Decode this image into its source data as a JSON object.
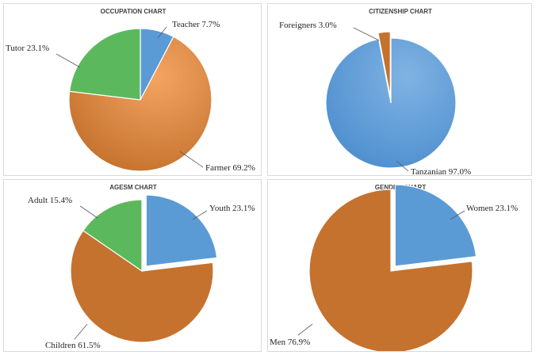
{
  "colors": {
    "blue": "#5b9bd5",
    "blue_light": "#8cbbe6",
    "orange": "#c5722e",
    "orange_light": "#f4a461",
    "green": "#5cb85c"
  },
  "chart_data": [
    {
      "id": "occupation",
      "type": "pie",
      "title": "OCCUPATION CHART",
      "slices": [
        {
          "label": "Teacher",
          "value": 7.7,
          "text": "Teacher 7.7%",
          "color": "#5b9bd5",
          "exploded": false
        },
        {
          "label": "Farmer",
          "value": 69.2,
          "text": "Farmer 69.2%",
          "color": "#c5722e",
          "highlight": "#f4a461",
          "exploded": false
        },
        {
          "label": "Tutor",
          "value": 23.1,
          "text": "Tutor 23.1%",
          "color": "#5cb85c",
          "exploded": false
        }
      ]
    },
    {
      "id": "citizenship",
      "type": "pie",
      "title": "CITIZENSHIP CHART",
      "slices": [
        {
          "label": "Tanzanian",
          "value": 97.0,
          "text": "Tanzanian 97.0%",
          "color": "#4f8fcf",
          "highlight": "#7fb3e3",
          "exploded": false
        },
        {
          "label": "Foreigners",
          "value": 3.0,
          "text": "Foreigners 3.0%",
          "color": "#c5722e",
          "exploded": true
        }
      ]
    },
    {
      "id": "agesm",
      "type": "pie",
      "title": "AGESM CHART",
      "slices": [
        {
          "label": "Youth",
          "value": 23.1,
          "text": "Youth 23.1%",
          "color": "#5b9bd5",
          "exploded": true
        },
        {
          "label": "Children",
          "value": 61.5,
          "text": "Children 61.5%",
          "color": "#c5722e",
          "exploded": false
        },
        {
          "label": "Adult",
          "value": 15.4,
          "text": "Adult 15.4%",
          "color": "#5cb85c",
          "exploded": false
        }
      ]
    },
    {
      "id": "gender",
      "type": "pie",
      "title": "GENDER CHART",
      "slices": [
        {
          "label": "Women",
          "value": 23.1,
          "text": "Women 23.1%",
          "color": "#5b9bd5",
          "exploded": true
        },
        {
          "label": "Men",
          "value": 76.9,
          "text": "Men 76.9%",
          "color": "#c5722e",
          "exploded": false
        }
      ]
    }
  ]
}
